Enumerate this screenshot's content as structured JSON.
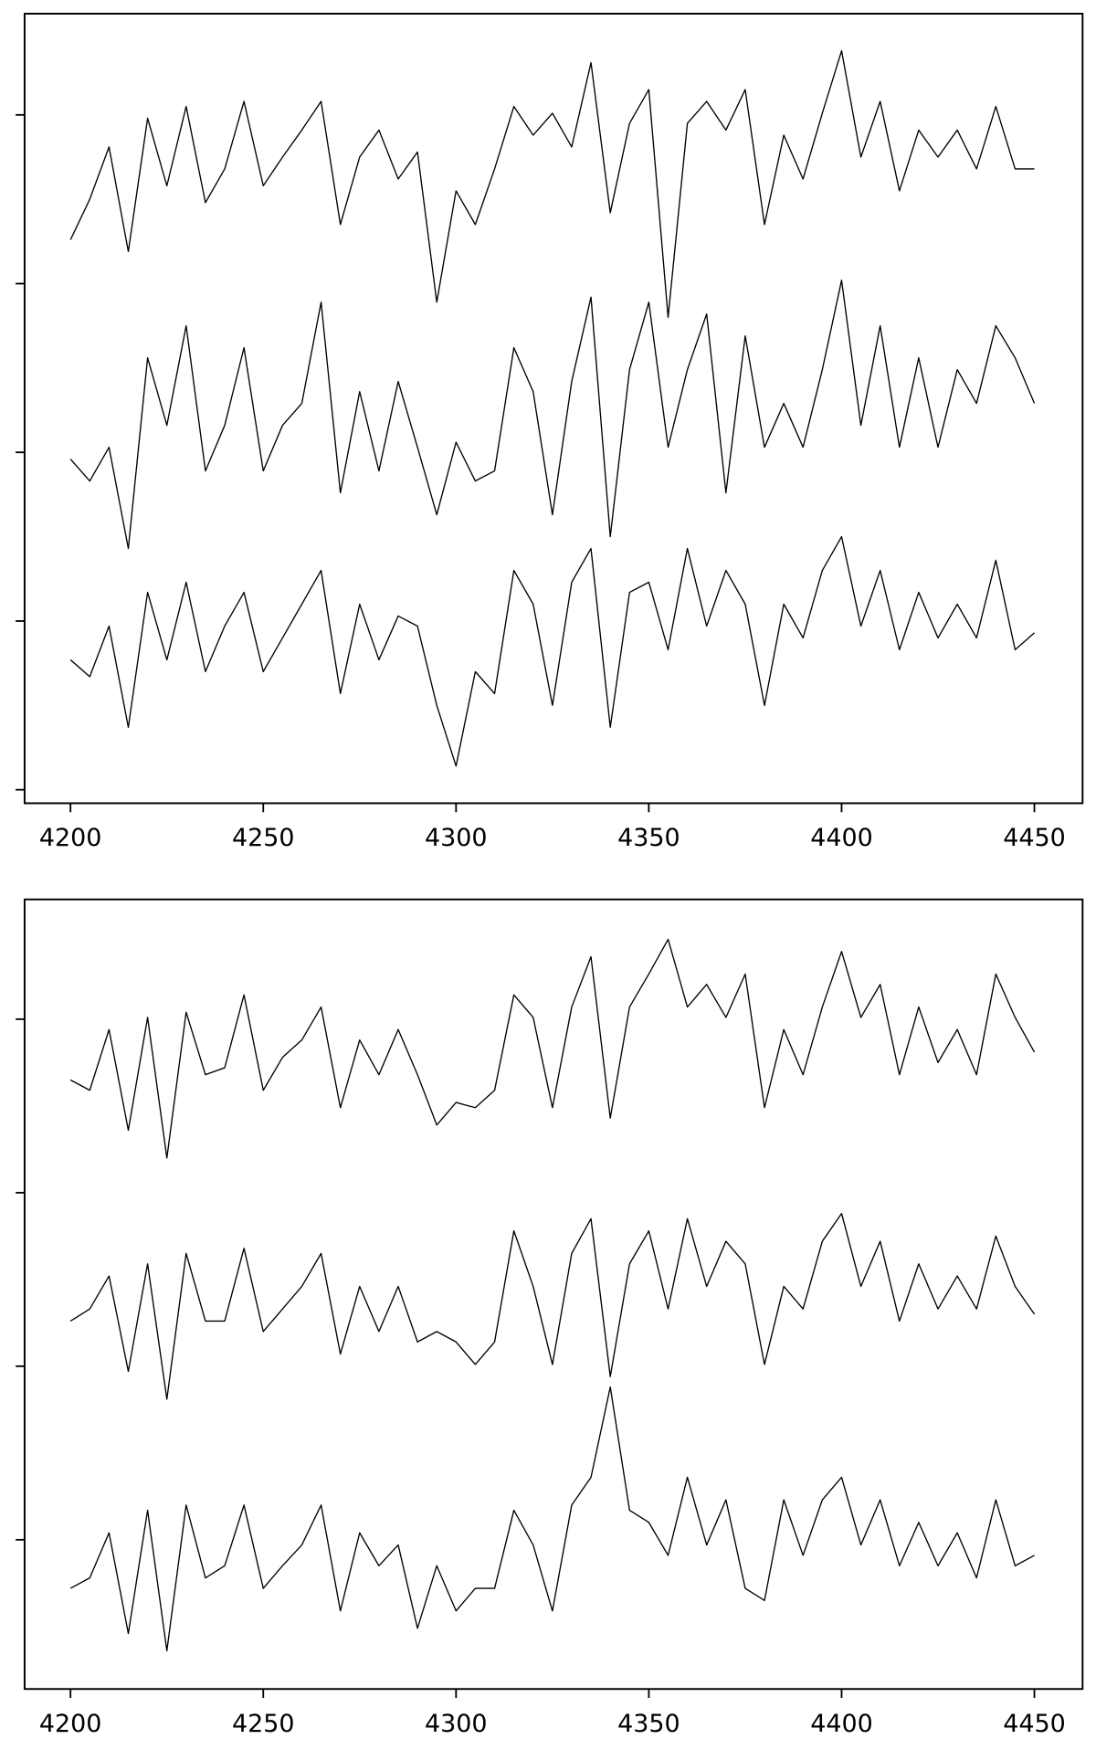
{
  "chart_data": [
    {
      "type": "line",
      "x": [
        4200,
        4205,
        4210,
        4215,
        4220,
        4225,
        4230,
        4235,
        4240,
        4245,
        4250,
        4255,
        4260,
        4265,
        4270,
        4275,
        4280,
        4285,
        4290,
        4295,
        4300,
        4305,
        4310,
        4315,
        4320,
        4325,
        4330,
        4335,
        4340,
        4345,
        4350,
        4355,
        4360,
        4365,
        4370,
        4375,
        4380,
        4385,
        4390,
        4395,
        4400,
        4405,
        4410,
        4415,
        4420,
        4425,
        4430,
        4435,
        4440,
        4445,
        4450
      ],
      "xlim": [
        4188.1,
        4462.5
      ],
      "xticks": [
        4200,
        4250,
        4300,
        4350,
        4400,
        4450
      ],
      "ylim": [
        -0.08,
        4.6
      ],
      "yticks": [
        0,
        1,
        2,
        3,
        4
      ],
      "series": [
        {
          "color": "#000000",
          "values": [
            3.26,
            3.5,
            3.81,
            3.19,
            3.98,
            3.58,
            4.05,
            3.48,
            3.68,
            4.08,
            3.58,
            3.75,
            3.91,
            4.08,
            3.35,
            3.75,
            3.91,
            3.62,
            3.78,
            2.89,
            3.55,
            3.35,
            3.68,
            4.05,
            3.88,
            4.01,
            3.81,
            4.31,
            3.42,
            3.95,
            4.15,
            2.8,
            3.95,
            4.08,
            3.91,
            4.15,
            3.35,
            3.88,
            3.62,
            4.01,
            4.38,
            3.75,
            4.08,
            3.55,
            3.91,
            3.75,
            3.91,
            3.68,
            4.05,
            3.68,
            3.68
          ]
        },
        {
          "color": "#000000",
          "values": [
            1.96,
            1.83,
            2.03,
            1.43,
            2.56,
            2.16,
            2.75,
            1.89,
            2.16,
            2.62,
            1.89,
            2.16,
            2.29,
            2.89,
            1.76,
            2.36,
            1.89,
            2.42,
            2.03,
            1.63,
            2.06,
            1.83,
            1.89,
            2.62,
            2.36,
            1.63,
            2.42,
            2.92,
            1.5,
            2.49,
            2.89,
            2.03,
            2.49,
            2.82,
            1.76,
            2.69,
            2.03,
            2.29,
            2.03,
            2.49,
            3.02,
            2.16,
            2.75,
            2.03,
            2.56,
            2.03,
            2.49,
            2.29,
            2.75,
            2.56,
            2.29
          ]
        },
        {
          "color": "#000000",
          "values": [
            0.77,
            0.67,
            0.97,
            0.37,
            1.17,
            0.77,
            1.23,
            0.7,
            0.97,
            1.17,
            0.7,
            0.9,
            1.1,
            1.3,
            0.57,
            1.1,
            0.77,
            1.03,
            0.97,
            0.5,
            0.14,
            0.7,
            0.57,
            1.3,
            1.1,
            0.5,
            1.23,
            1.43,
            0.37,
            1.17,
            1.23,
            0.83,
            1.43,
            0.97,
            1.3,
            1.1,
            0.5,
            1.1,
            0.9,
            1.3,
            1.5,
            0.97,
            1.3,
            0.83,
            1.17,
            0.9,
            1.1,
            0.9,
            1.36,
            0.83,
            0.93
          ]
        }
      ]
    },
    {
      "type": "line",
      "x": [
        4200,
        4205,
        4210,
        4215,
        4220,
        4225,
        4230,
        4235,
        4240,
        4245,
        4250,
        4255,
        4260,
        4265,
        4270,
        4275,
        4280,
        4285,
        4290,
        4295,
        4300,
        4305,
        4310,
        4315,
        4320,
        4325,
        4330,
        4335,
        4340,
        4345,
        4350,
        4355,
        4360,
        4365,
        4370,
        4375,
        4380,
        4385,
        4390,
        4395,
        4400,
        4405,
        4410,
        4415,
        4420,
        4425,
        4430,
        4435,
        4440,
        4445,
        4450
      ],
      "xlim": [
        4188.1,
        4462.5
      ],
      "xticks": [
        4200,
        4250,
        4300,
        4350,
        4400,
        4450
      ],
      "ylim": [
        -0.86,
        3.69
      ],
      "yticks": [
        0,
        1,
        2,
        3
      ],
      "series": [
        {
          "color": "#000000",
          "values": [
            2.65,
            2.59,
            2.94,
            2.36,
            3.01,
            2.2,
            3.04,
            2.68,
            2.72,
            3.14,
            2.59,
            2.78,
            2.88,
            3.07,
            2.49,
            2.88,
            2.68,
            2.94,
            2.68,
            2.39,
            2.52,
            2.49,
            2.59,
            3.14,
            3.01,
            2.49,
            3.07,
            3.36,
            2.43,
            3.07,
            3.26,
            3.46,
            3.07,
            3.2,
            3.01,
            3.26,
            2.49,
            2.94,
            2.68,
            3.07,
            3.39,
            3.01,
            3.2,
            2.68,
            3.07,
            2.75,
            2.94,
            2.68,
            3.26,
            3.01,
            2.81
          ]
        },
        {
          "color": "#000000",
          "values": [
            1.26,
            1.33,
            1.52,
            0.97,
            1.59,
            0.81,
            1.65,
            1.26,
            1.26,
            1.68,
            1.2,
            1.33,
            1.46,
            1.65,
            1.07,
            1.46,
            1.2,
            1.46,
            1.14,
            1.2,
            1.14,
            1.01,
            1.14,
            1.78,
            1.46,
            1.01,
            1.65,
            1.85,
            0.94,
            1.59,
            1.78,
            1.33,
            1.85,
            1.46,
            1.72,
            1.59,
            1.01,
            1.46,
            1.33,
            1.72,
            1.88,
            1.46,
            1.72,
            1.26,
            1.59,
            1.33,
            1.52,
            1.33,
            1.75,
            1.46,
            1.3
          ]
        },
        {
          "color": "#000000",
          "values": [
            -0.28,
            -0.22,
            0.04,
            -0.54,
            0.17,
            -0.64,
            0.2,
            -0.22,
            -0.15,
            0.2,
            -0.28,
            -0.15,
            -0.03,
            0.2,
            -0.41,
            0.04,
            -0.15,
            -0.03,
            -0.51,
            -0.15,
            -0.41,
            -0.28,
            -0.28,
            0.17,
            -0.03,
            -0.41,
            0.2,
            0.36,
            0.88,
            0.17,
            0.1,
            -0.09,
            0.36,
            -0.03,
            0.23,
            -0.28,
            -0.35,
            0.23,
            -0.09,
            0.23,
            0.36,
            -0.03,
            0.23,
            -0.15,
            0.1,
            -0.15,
            0.04,
            -0.22,
            0.23,
            -0.15,
            -0.09
          ]
        }
      ]
    }
  ]
}
